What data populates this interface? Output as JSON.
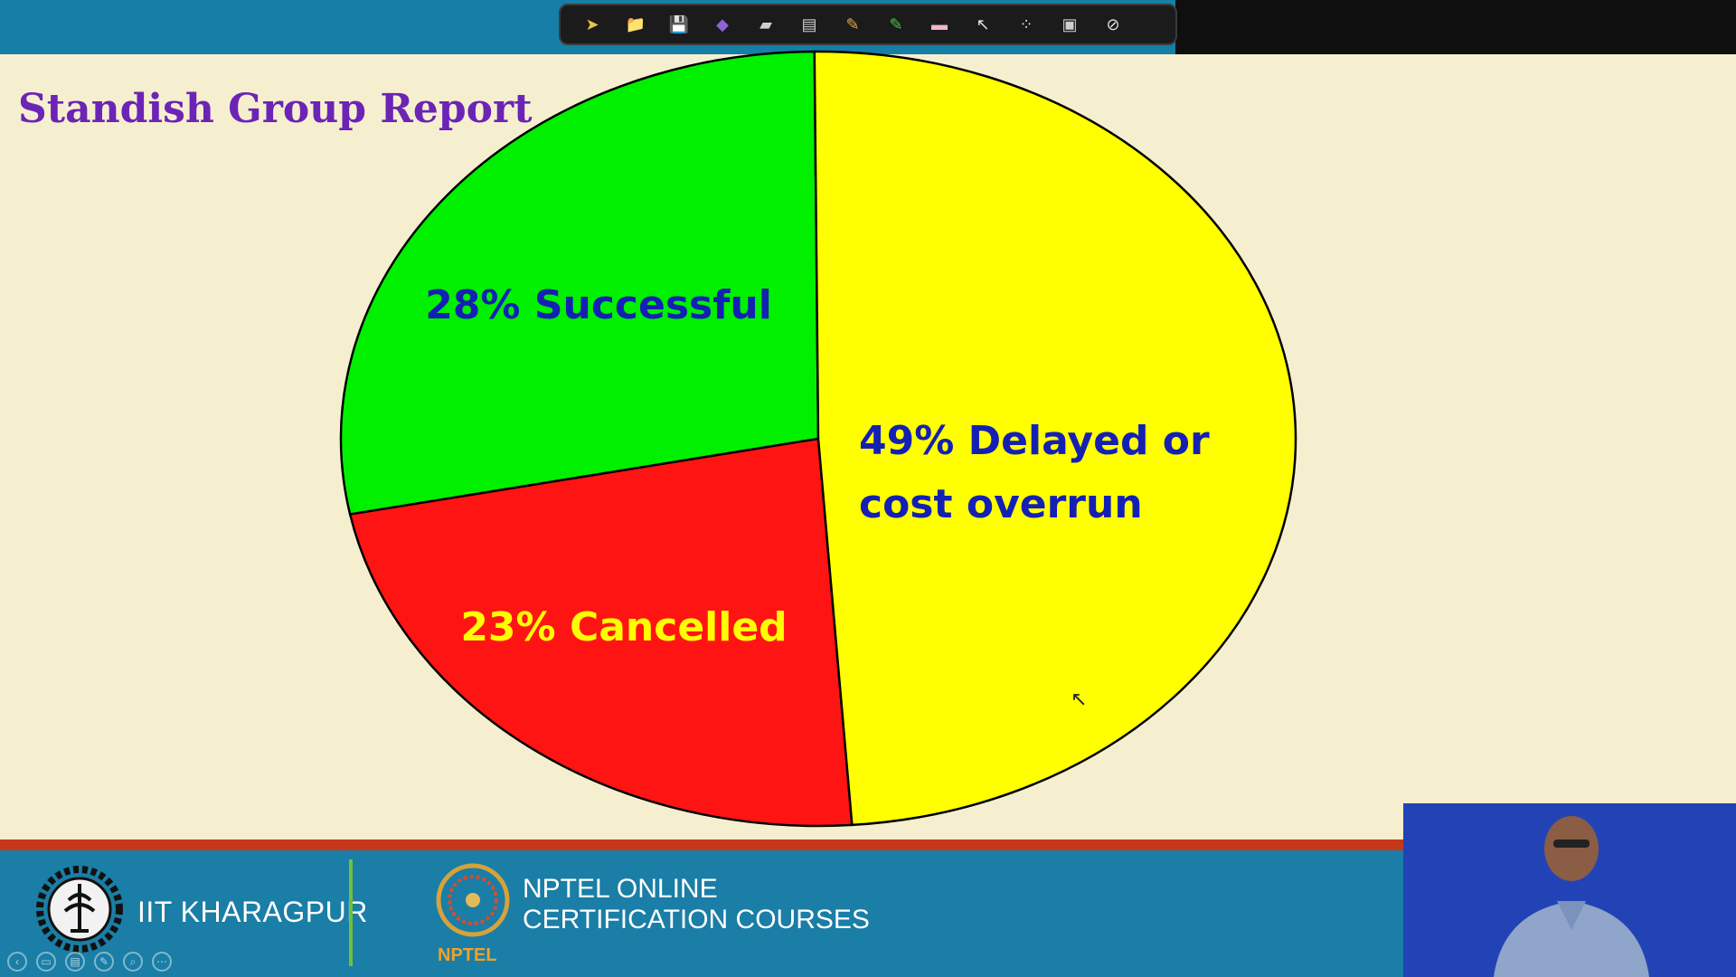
{
  "toolbar": {
    "buttons": [
      {
        "icon": "pointer-file-icon",
        "glyph": "➤",
        "color": "#e8c34a"
      },
      {
        "icon": "folder-icon",
        "glyph": "📁",
        "color": "#e8b33a"
      },
      {
        "icon": "save-icon",
        "glyph": "💾",
        "color": "#cfcfcf"
      },
      {
        "icon": "gem-icon",
        "glyph": "◆",
        "color": "#8e63d6"
      },
      {
        "icon": "page-icon",
        "glyph": "▰",
        "color": "#cfcfcf"
      },
      {
        "icon": "printer-icon",
        "glyph": "▤",
        "color": "#cfcfcf"
      },
      {
        "icon": "pencil-icon",
        "glyph": "✎",
        "color": "#e6a64a"
      },
      {
        "icon": "highlighter-icon",
        "glyph": "✎",
        "color": "#49c54c"
      },
      {
        "icon": "eraser-icon",
        "glyph": "▬",
        "color": "#f3b6c8"
      },
      {
        "icon": "arrow-cursor-icon",
        "glyph": "↖",
        "color": "#e0e0e0"
      },
      {
        "icon": "laser-dots-icon",
        "glyph": "⁘",
        "color": "#e0e0e0"
      },
      {
        "icon": "screen-icon",
        "glyph": "▣",
        "color": "#cfcfcf"
      },
      {
        "icon": "stop-icon",
        "glyph": "⊘",
        "color": "#e0e0e0"
      }
    ]
  },
  "slide": {
    "title": "Standish Group Report"
  },
  "chart_data": {
    "type": "pie",
    "slices": [
      {
        "label": "28% Successful",
        "lines": [
          "28% Successful"
        ],
        "value": 28,
        "color": "#00f000",
        "text_color": "#1420b4"
      },
      {
        "label": "23% Cancelled",
        "lines": [
          "23% Cancelled"
        ],
        "value": 23,
        "color": "#ff1414",
        "text_color": "#ffff00"
      },
      {
        "label": "49% Delayed or cost overrun",
        "lines": [
          "49% Delayed or",
          "cost overrun"
        ],
        "value": 49,
        "color": "#ffff00",
        "text_color": "#1420b4"
      }
    ]
  },
  "footer": {
    "institute": "IIT KHARAGPUR",
    "nptel_line1": "NPTEL ONLINE",
    "nptel_line2": "CERTIFICATION COURSES",
    "nptel_small": "NPTEL"
  },
  "player": {
    "controls": [
      {
        "icon": "prev-icon",
        "glyph": "‹"
      },
      {
        "icon": "slides-icon",
        "glyph": "▭"
      },
      {
        "icon": "notes-icon",
        "glyph": "▤"
      },
      {
        "icon": "pen-icon",
        "glyph": "✎"
      },
      {
        "icon": "zoom-icon",
        "glyph": "⌕"
      },
      {
        "icon": "more-icon",
        "glyph": "⋯"
      }
    ]
  }
}
